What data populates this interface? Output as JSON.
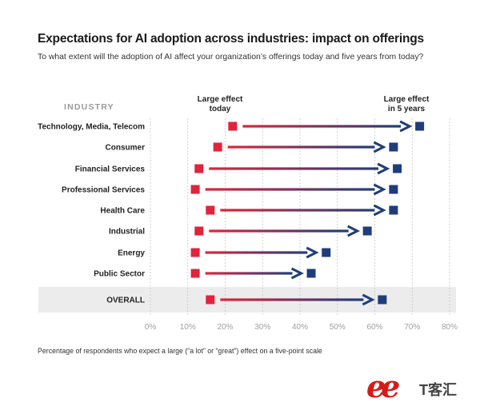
{
  "title": "Expectations for AI adoption across industries: impact on offerings",
  "subtitle": "To what extent will the adoption of AI affect your organization’s offerings today and five years from today?",
  "footnote": "Percentage of respondents who expect a large (“a lot” or “great”) effect on a five-point scale",
  "watermark": "T客汇",
  "chart_data": {
    "type": "dumbbell-arrow",
    "row_header": "INDUSTRY",
    "legend": {
      "today_line1": "Large effect",
      "today_line2": "today",
      "future_line1": "Large effect",
      "future_line2": "in 5 years"
    },
    "xlim": [
      0,
      80
    ],
    "x_ticks": [
      "0%",
      "10%",
      "20%",
      "30%",
      "40%",
      "50%",
      "60%",
      "70%",
      "80%"
    ],
    "x_tick_values": [
      0,
      10,
      20,
      30,
      40,
      50,
      60,
      70,
      80
    ],
    "grid": true,
    "colors": {
      "today": "#e0243b",
      "future": "#1f3d7a",
      "highlight_band": "#ececec"
    },
    "series": [
      {
        "name": "Large effect today",
        "key": "today"
      },
      {
        "name": "Large effect in 5 years",
        "key": "future"
      }
    ],
    "rows": [
      {
        "label": "Technology, Media, Telecom",
        "today": 22,
        "future": 72
      },
      {
        "label": "Consumer",
        "today": 18,
        "future": 65
      },
      {
        "label": "Financial Services",
        "today": 13,
        "future": 66
      },
      {
        "label": "Professional Services",
        "today": 12,
        "future": 65
      },
      {
        "label": "Health Care",
        "today": 16,
        "future": 65
      },
      {
        "label": "Industrial",
        "today": 13,
        "future": 58
      },
      {
        "label": "Energy",
        "today": 12,
        "future": 47
      },
      {
        "label": "Public Sector",
        "today": 12,
        "future": 43
      },
      {
        "label": "OVERALL",
        "today": 16,
        "future": 62,
        "highlight": true
      }
    ]
  }
}
